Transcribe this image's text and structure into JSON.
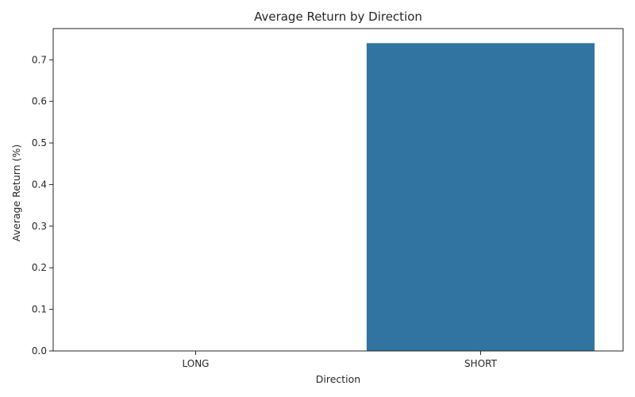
{
  "chart_data": {
    "type": "bar",
    "title": "Average Return by Direction",
    "xlabel": "Direction",
    "ylabel": "Average Return (%)",
    "categories": [
      "LONG",
      "SHORT"
    ],
    "values": [
      0.0,
      0.74
    ],
    "ylim": [
      0,
      0.775
    ],
    "yticks": [
      "0.0",
      "0.1",
      "0.2",
      "0.3",
      "0.4",
      "0.5",
      "0.6",
      "0.7"
    ],
    "bar_color": "#3274a1",
    "grid": false,
    "legend": "none"
  }
}
